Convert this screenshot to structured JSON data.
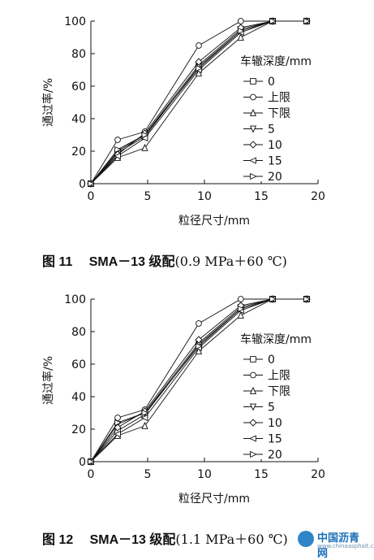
{
  "charts": [
    {
      "caption": {
        "number": "图 11",
        "title": "SMA－13 级配",
        "condition": "(0.9 MPa＋60 ℃)"
      }
    },
    {
      "caption": {
        "number": "图 12",
        "title": "SMA－13 级配",
        "condition": "(1.1 MPa＋60 ℃)"
      }
    }
  ],
  "watermark": {
    "main": "中国沥青网",
    "sub": "www.chinaasphalt.com"
  },
  "chart_data": [
    {
      "type": "line",
      "xlabel": "粒径尺寸/mm",
      "ylabel": "通过率/%",
      "xlim": [
        0,
        20
      ],
      "ylim": [
        0,
        100
      ],
      "xticks": [
        0,
        5,
        10,
        15,
        20
      ],
      "yticks": [
        0,
        20,
        40,
        60,
        80,
        100
      ],
      "legend_title": "车辙深度/mm",
      "legend_position": "right",
      "x": [
        0,
        2.36,
        4.75,
        9.5,
        13.2,
        16,
        19
      ],
      "series": [
        {
          "name": "0",
          "marker": "square",
          "values": [
            0,
            19,
            29,
            72,
            94,
            100,
            100
          ]
        },
        {
          "name": "上限",
          "marker": "circle",
          "values": [
            0,
            27,
            32,
            85,
            100,
            100,
            100
          ]
        },
        {
          "name": "下限",
          "marker": "triangle-up",
          "values": [
            0,
            16,
            22,
            68,
            90,
            100,
            100
          ]
        },
        {
          "name": "5",
          "marker": "triangle-down",
          "values": [
            0,
            20,
            30,
            73,
            95,
            100,
            100
          ]
        },
        {
          "name": "10",
          "marker": "diamond",
          "values": [
            0,
            18,
            31,
            75,
            96,
            100,
            100
          ]
        },
        {
          "name": "15",
          "marker": "triangle-left",
          "values": [
            0,
            17,
            28,
            70,
            93,
            100,
            100
          ]
        },
        {
          "name": "20",
          "marker": "triangle-right",
          "values": [
            0,
            21,
            30,
            71,
            94,
            100,
            100
          ]
        }
      ]
    },
    {
      "type": "line",
      "xlabel": "粒径尺寸/mm",
      "ylabel": "通过率/%",
      "xlim": [
        0,
        20
      ],
      "ylim": [
        0,
        100
      ],
      "xticks": [
        0,
        5,
        10,
        15,
        20
      ],
      "yticks": [
        0,
        20,
        40,
        60,
        80,
        100
      ],
      "legend_title": "车辙深度/mm",
      "legend_position": "right",
      "x": [
        0,
        2.36,
        4.75,
        9.5,
        13.2,
        16,
        19
      ],
      "series": [
        {
          "name": "0",
          "marker": "square",
          "values": [
            0,
            19,
            29,
            72,
            94,
            100,
            100
          ]
        },
        {
          "name": "上限",
          "marker": "circle",
          "values": [
            0,
            27,
            32,
            85,
            100,
            100,
            100
          ]
        },
        {
          "name": "下限",
          "marker": "triangle-up",
          "values": [
            0,
            16,
            22,
            68,
            90,
            100,
            100
          ]
        },
        {
          "name": "5",
          "marker": "triangle-down",
          "values": [
            0,
            23,
            30,
            73,
            95,
            100,
            100
          ]
        },
        {
          "name": "10",
          "marker": "diamond",
          "values": [
            0,
            21,
            31,
            75,
            96,
            100,
            100
          ]
        },
        {
          "name": "15",
          "marker": "triangle-left",
          "values": [
            0,
            17,
            27,
            70,
            93,
            100,
            100
          ]
        },
        {
          "name": "20",
          "marker": "triangle-right",
          "values": [
            0,
            24,
            30,
            71,
            94,
            100,
            100
          ]
        }
      ]
    }
  ]
}
